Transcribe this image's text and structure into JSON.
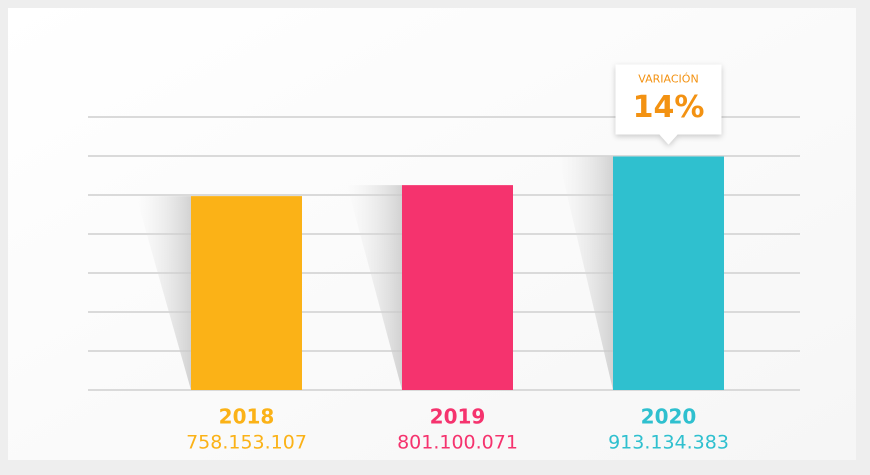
{
  "chart_data": {
    "type": "bar",
    "categories": [
      "2018",
      "2019",
      "2020"
    ],
    "values": [
      758153107,
      801100071,
      913134383
    ],
    "value_labels": [
      "758.153.107",
      "801.100.071",
      "913.134.383"
    ],
    "colors": [
      "#fbb217",
      "#f5336e",
      "#2fc0cf"
    ],
    "ylim": [
      0,
      1067500000
    ],
    "yticks": [
      0,
      152500000,
      305000000,
      457500000,
      610000000,
      762500000,
      915000000,
      1067500000
    ],
    "grid": true,
    "annotation": {
      "title": "VARIACIÓN",
      "text": "14%",
      "color": "#f39212"
    }
  }
}
